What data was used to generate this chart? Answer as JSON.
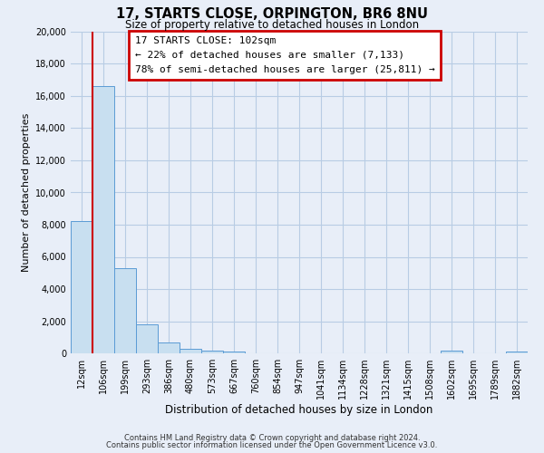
{
  "title": "17, STARTS CLOSE, ORPINGTON, BR6 8NU",
  "subtitle": "Size of property relative to detached houses in London",
  "xlabel": "Distribution of detached houses by size in London",
  "ylabel": "Number of detached properties",
  "bar_color": "#c8dff0",
  "bar_edge_color": "#5b9bd5",
  "bg_color": "#e8eef8",
  "grid_color": "#b8cce4",
  "vline_color": "#cc0000",
  "vline_x_index": 1,
  "categories": [
    "12sqm",
    "106sqm",
    "199sqm",
    "293sqm",
    "386sqm",
    "480sqm",
    "573sqm",
    "667sqm",
    "760sqm",
    "854sqm",
    "947sqm",
    "1041sqm",
    "1134sqm",
    "1228sqm",
    "1321sqm",
    "1415sqm",
    "1508sqm",
    "1602sqm",
    "1695sqm",
    "1789sqm",
    "1882sqm"
  ],
  "bar_heights": [
    8200,
    16600,
    5300,
    1800,
    700,
    300,
    150,
    100,
    0,
    0,
    0,
    0,
    0,
    0,
    0,
    0,
    0,
    150,
    0,
    0,
    100
  ],
  "ylim": [
    0,
    20000
  ],
  "yticks": [
    0,
    2000,
    4000,
    6000,
    8000,
    10000,
    12000,
    14000,
    16000,
    18000,
    20000
  ],
  "annotation_title": "17 STARTS CLOSE: 102sqm",
  "annotation_line1": "← 22% of detached houses are smaller (7,133)",
  "annotation_line2": "78% of semi-detached houses are larger (25,811) →",
  "footer1": "Contains HM Land Registry data © Crown copyright and database right 2024.",
  "footer2": "Contains public sector information licensed under the Open Government Licence v3.0."
}
